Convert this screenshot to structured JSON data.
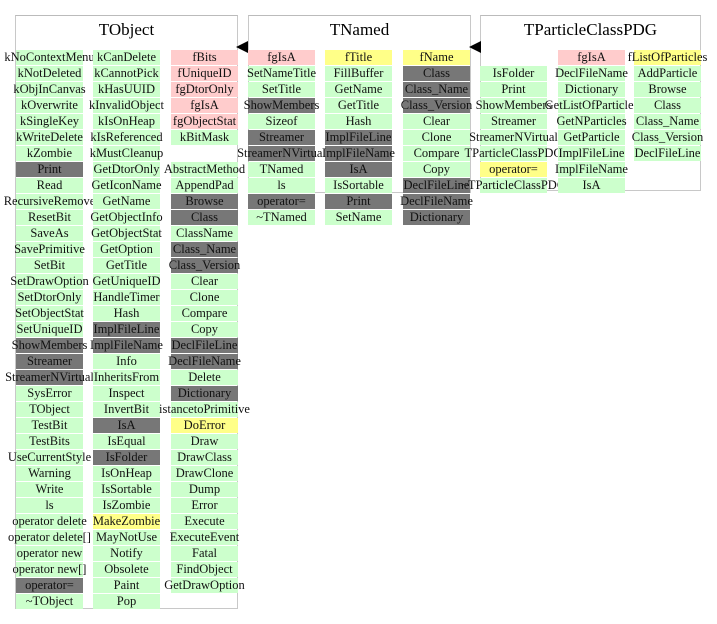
{
  "colors": {
    "green": "#ccffcc",
    "pink": "#ffcccc",
    "yellow": "#ffff88",
    "gray": "#777777"
  },
  "classes": [
    {
      "title": "TObject",
      "columns": [
        [
          [
            "kNoContextMenu",
            "green"
          ],
          [
            "kNotDeleted",
            "green"
          ],
          [
            "kObjInCanvas",
            "green"
          ],
          [
            "kOverwrite",
            "green"
          ],
          [
            "kSingleKey",
            "green"
          ],
          [
            "kWriteDelete",
            "green"
          ],
          [
            "kZombie",
            "green"
          ],
          [
            "Print",
            "gray"
          ],
          [
            "Read",
            "green"
          ],
          [
            "RecursiveRemove",
            "green"
          ],
          [
            "ResetBit",
            "green"
          ],
          [
            "SaveAs",
            "green"
          ],
          [
            "SavePrimitive",
            "green"
          ],
          [
            "SetBit",
            "green"
          ],
          [
            "SetDrawOption",
            "green"
          ],
          [
            "SetDtorOnly",
            "green"
          ],
          [
            "SetObjectStat",
            "green"
          ],
          [
            "SetUniqueID",
            "green"
          ],
          [
            "ShowMembers",
            "gray"
          ],
          [
            "Streamer",
            "gray"
          ],
          [
            "StreamerNVirtual",
            "gray"
          ],
          [
            "SysError",
            "green"
          ],
          [
            "TObject",
            "green"
          ],
          [
            "TestBit",
            "green"
          ],
          [
            "TestBits",
            "green"
          ],
          [
            "UseCurrentStyle",
            "green"
          ],
          [
            "Warning",
            "green"
          ],
          [
            "Write",
            "green"
          ],
          [
            "ls",
            "green"
          ],
          [
            "operator delete",
            "green"
          ],
          [
            "operator delete[]",
            "green"
          ],
          [
            "operator new",
            "green"
          ],
          [
            "operator new[]",
            "green"
          ],
          [
            "operator=",
            "gray"
          ],
          [
            "~TObject",
            "green"
          ]
        ],
        [
          [
            "kCanDelete",
            "green"
          ],
          [
            "kCannotPick",
            "green"
          ],
          [
            "kHasUUID",
            "green"
          ],
          [
            "kInvalidObject",
            "green"
          ],
          [
            "kIsOnHeap",
            "green"
          ],
          [
            "kIsReferenced",
            "green"
          ],
          [
            "kMustCleanup",
            "green"
          ],
          [
            "GetDtorOnly",
            "green"
          ],
          [
            "GetIconName",
            "green"
          ],
          [
            "GetName",
            "green"
          ],
          [
            "GetObjectInfo",
            "green"
          ],
          [
            "GetObjectStat",
            "green"
          ],
          [
            "GetOption",
            "green"
          ],
          [
            "GetTitle",
            "green"
          ],
          [
            "GetUniqueID",
            "green"
          ],
          [
            "HandleTimer",
            "green"
          ],
          [
            "Hash",
            "green"
          ],
          [
            "ImplFileLine",
            "gray"
          ],
          [
            "ImplFileName",
            "gray"
          ],
          [
            "Info",
            "green"
          ],
          [
            "InheritsFrom",
            "green"
          ],
          [
            "Inspect",
            "green"
          ],
          [
            "InvertBit",
            "green"
          ],
          [
            "IsA",
            "gray"
          ],
          [
            "IsEqual",
            "green"
          ],
          [
            "IsFolder",
            "gray"
          ],
          [
            "IsOnHeap",
            "green"
          ],
          [
            "IsSortable",
            "green"
          ],
          [
            "IsZombie",
            "green"
          ],
          [
            "MakeZombie",
            "yellow"
          ],
          [
            "MayNotUse",
            "green"
          ],
          [
            "Notify",
            "green"
          ],
          [
            "Obsolete",
            "green"
          ],
          [
            "Paint",
            "green"
          ],
          [
            "Pop",
            "green"
          ]
        ],
        [
          [
            "fBits",
            "pink"
          ],
          [
            "fUniqueID",
            "pink"
          ],
          [
            "fgDtorOnly",
            "pink"
          ],
          [
            "fgIsA",
            "pink"
          ],
          [
            "fgObjectStat",
            "pink"
          ],
          [
            "kBitMask",
            "green"
          ],
          [
            "",
            "blank"
          ],
          [
            "AbstractMethod",
            "green"
          ],
          [
            "AppendPad",
            "green"
          ],
          [
            "Browse",
            "gray"
          ],
          [
            "Class",
            "gray"
          ],
          [
            "ClassName",
            "green"
          ],
          [
            "Class_Name",
            "gray"
          ],
          [
            "Class_Version",
            "gray"
          ],
          [
            "Clear",
            "green"
          ],
          [
            "Clone",
            "green"
          ],
          [
            "Compare",
            "green"
          ],
          [
            "Copy",
            "green"
          ],
          [
            "DeclFileLine",
            "gray"
          ],
          [
            "DeclFileName",
            "gray"
          ],
          [
            "Delete",
            "green"
          ],
          [
            "Dictionary",
            "gray"
          ],
          [
            "istancetoPrimitive",
            "green"
          ],
          [
            "DoError",
            "yellow"
          ],
          [
            "Draw",
            "green"
          ],
          [
            "DrawClass",
            "green"
          ],
          [
            "DrawClone",
            "green"
          ],
          [
            "Dump",
            "green"
          ],
          [
            "Error",
            "green"
          ],
          [
            "Execute",
            "green"
          ],
          [
            "ExecuteEvent",
            "green"
          ],
          [
            "Fatal",
            "green"
          ],
          [
            "FindObject",
            "green"
          ],
          [
            "GetDrawOption",
            "green"
          ]
        ]
      ]
    },
    {
      "title": "TNamed",
      "columns": [
        [
          [
            "fgIsA",
            "pink"
          ],
          [
            "SetNameTitle",
            "green"
          ],
          [
            "SetTitle",
            "green"
          ],
          [
            "ShowMembers",
            "gray"
          ],
          [
            "Sizeof",
            "green"
          ],
          [
            "Streamer",
            "gray"
          ],
          [
            "StreamerNVirtual",
            "gray"
          ],
          [
            "TNamed",
            "green"
          ],
          [
            "ls",
            "green"
          ],
          [
            "operator=",
            "gray"
          ],
          [
            "~TNamed",
            "green"
          ]
        ],
        [
          [
            "fTitle",
            "yellow"
          ],
          [
            "FillBuffer",
            "green"
          ],
          [
            "GetName",
            "green"
          ],
          [
            "GetTitle",
            "green"
          ],
          [
            "Hash",
            "green"
          ],
          [
            "ImplFileLine",
            "gray"
          ],
          [
            "ImplFileName",
            "gray"
          ],
          [
            "IsA",
            "gray"
          ],
          [
            "IsSortable",
            "green"
          ],
          [
            "Print",
            "gray"
          ],
          [
            "SetName",
            "green"
          ]
        ],
        [
          [
            "fName",
            "yellow"
          ],
          [
            "Class",
            "gray"
          ],
          [
            "Class_Name",
            "gray"
          ],
          [
            "Class_Version",
            "gray"
          ],
          [
            "Clear",
            "green"
          ],
          [
            "Clone",
            "green"
          ],
          [
            "Compare",
            "green"
          ],
          [
            "Copy",
            "green"
          ],
          [
            "DeclFileLine",
            "gray"
          ],
          [
            "DeclFileName",
            "gray"
          ],
          [
            "Dictionary",
            "gray"
          ]
        ]
      ]
    },
    {
      "title": "TParticleClassPDG",
      "columns": [
        [
          [
            "",
            "blank"
          ],
          [
            "IsFolder",
            "green"
          ],
          [
            "Print",
            "green"
          ],
          [
            "ShowMembers",
            "green"
          ],
          [
            "Streamer",
            "green"
          ],
          [
            "StreamerNVirtual",
            "green"
          ],
          [
            "TParticleClassPDG",
            "green"
          ],
          [
            "operator=",
            "yellow"
          ],
          [
            "~TParticleClassPDG",
            "green"
          ]
        ],
        [
          [
            "fgIsA",
            "pink"
          ],
          [
            "DeclFileName",
            "green"
          ],
          [
            "Dictionary",
            "green"
          ],
          [
            "GetListOfParticles",
            "green"
          ],
          [
            "GetNParticles",
            "green"
          ],
          [
            "GetParticle",
            "green"
          ],
          [
            "ImplFileLine",
            "green"
          ],
          [
            "ImplFileName",
            "green"
          ],
          [
            "IsA",
            "green"
          ]
        ],
        [
          [
            "fListOfParticles",
            "yellow"
          ],
          [
            "AddParticle",
            "green"
          ],
          [
            "Browse",
            "green"
          ],
          [
            "Class",
            "green"
          ],
          [
            "Class_Name",
            "green"
          ],
          [
            "Class_Version",
            "green"
          ],
          [
            "DeclFileLine",
            "green"
          ]
        ]
      ]
    }
  ]
}
